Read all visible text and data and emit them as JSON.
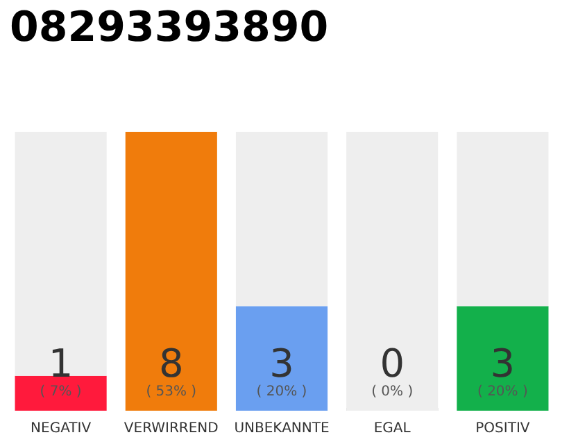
{
  "chart_data": {
    "type": "bar",
    "title": "08293393890",
    "categories": [
      "NEGATIV",
      "VERWIRREND",
      "UNBEKANNTE",
      "EGAL",
      "POSITIV"
    ],
    "stacked": true,
    "series": [
      {
        "colors": [
          "#ff1a3c",
          "#f07c0c",
          "#6a9ff0",
          "#aaaaaa",
          "#13b04b"
        ],
        "values": [
          1,
          8,
          3,
          0,
          3
        ],
        "value_labels": [
          "1",
          "8",
          "3",
          "0",
          "3"
        ]
      },
      {
        "color": "#eeeeee",
        "values": [
          7,
          0,
          5,
          8,
          5
        ]
      }
    ],
    "annotations": [
      "( 7% )",
      "( 53% )",
      "( 20% )",
      "( 0% )",
      "( 20% )"
    ]
  }
}
